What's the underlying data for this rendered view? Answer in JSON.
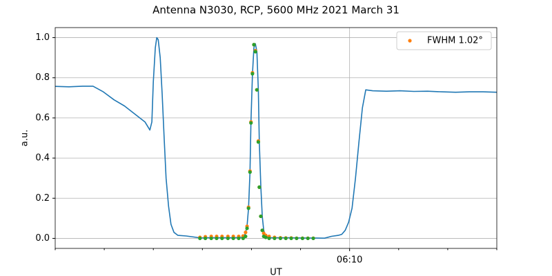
{
  "chart_data": {
    "type": "line",
    "title": "Antenna N3030, RCP, 5600 MHz 2021 March 31",
    "x_label": "UT",
    "y_label": "a.u.",
    "xlim": [
      364,
      373
    ],
    "xticks": [
      {
        "value": 370,
        "label": "06:10"
      }
    ],
    "xminorticks": [
      364,
      365,
      366,
      367,
      368,
      369,
      371,
      372,
      373
    ],
    "ylim": [
      -0.05,
      1.05
    ],
    "yticks": [
      {
        "value": 0,
        "label": "0.0"
      },
      0.2,
      0.4,
      0.6,
      0.8,
      {
        "value": 1,
        "label": "1.0"
      }
    ],
    "grid": true,
    "legend": "upper right",
    "series": [
      {
        "type": "line",
        "color": "#1f77b4",
        "x": [
          364.0,
          364.28,
          364.56,
          364.77,
          364.98,
          365.2,
          365.41,
          365.62,
          365.83,
          365.93,
          365.97,
          366.0,
          366.04,
          366.07,
          366.1,
          366.14,
          366.18,
          366.22,
          366.26,
          366.31,
          366.36,
          366.42,
          366.5,
          366.67,
          366.88,
          366.95,
          367.09,
          367.38,
          367.66,
          367.8,
          367.87,
          367.91,
          367.94,
          367.97,
          367.99,
          368.02,
          368.05,
          368.08,
          368.11,
          368.14,
          368.16,
          368.19,
          368.22,
          368.25,
          368.29,
          368.36,
          368.78,
          369.06,
          369.27,
          369.49,
          369.63,
          369.77,
          369.84,
          369.91,
          369.98,
          370.05,
          370.12,
          370.19,
          370.26,
          370.33,
          370.47,
          370.75,
          371.03,
          371.31,
          371.59,
          371.88,
          372.16,
          372.44,
          372.72,
          373.0
        ],
        "values": [
          0.757,
          0.755,
          0.758,
          0.758,
          0.73,
          0.69,
          0.66,
          0.62,
          0.58,
          0.54,
          0.58,
          0.78,
          0.95,
          1.0,
          0.99,
          0.9,
          0.72,
          0.5,
          0.3,
          0.16,
          0.07,
          0.03,
          0.015,
          0.012,
          0.005,
          0.002,
          0.003,
          0.003,
          0.003,
          0.005,
          0.02,
          0.06,
          0.15,
          0.33,
          0.58,
          0.82,
          0.95,
          0.97,
          0.93,
          0.74,
          0.48,
          0.26,
          0.11,
          0.04,
          0.01,
          0.003,
          0.003,
          0.002,
          0.002,
          0.001,
          0.01,
          0.015,
          0.02,
          0.04,
          0.08,
          0.15,
          0.3,
          0.48,
          0.65,
          0.74,
          0.735,
          0.733,
          0.735,
          0.732,
          0.733,
          0.73,
          0.728,
          0.73,
          0.73,
          0.728
        ]
      },
      {
        "type": "scatter",
        "name": "FWHM 1.02°",
        "color": "#ff7f0e",
        "x": [
          366.95,
          367.06,
          367.18,
          367.29,
          367.4,
          367.52,
          367.63,
          367.74,
          367.83,
          367.88,
          367.91,
          367.94,
          367.97,
          367.99,
          368.02,
          368.05,
          368.08,
          368.11,
          368.14,
          368.16,
          368.19,
          368.22,
          368.25,
          368.29,
          368.36,
          368.47,
          368.59,
          368.7,
          368.81,
          368.92,
          369.04,
          369.15,
          369.26
        ],
        "values": [
          0.005,
          0.008,
          0.01,
          0.01,
          0.01,
          0.01,
          0.01,
          0.01,
          0.012,
          0.03,
          0.06,
          0.155,
          0.335,
          0.58,
          0.825,
          0.965,
          0.935,
          0.74,
          0.485,
          0.255,
          0.11,
          0.04,
          0.025,
          0.015,
          0.01,
          0.005,
          0.003,
          0.002,
          0.002,
          0.001,
          0.001,
          0.001,
          0.001
        ]
      },
      {
        "type": "scatter",
        "color": "#2ca02c",
        "x": [
          366.95,
          367.06,
          367.18,
          367.29,
          367.4,
          367.52,
          367.63,
          367.74,
          367.83,
          367.88,
          367.91,
          367.94,
          367.97,
          367.99,
          368.02,
          368.05,
          368.08,
          368.11,
          368.14,
          368.16,
          368.19,
          368.22,
          368.25,
          368.29,
          368.36,
          368.47,
          368.59,
          368.7,
          368.81,
          368.92,
          369.04,
          369.15,
          369.26
        ],
        "values": [
          0,
          0,
          0,
          0,
          0,
          0,
          0,
          0,
          0,
          0.01,
          0.05,
          0.15,
          0.33,
          0.575,
          0.82,
          0.965,
          0.93,
          0.74,
          0.48,
          0.255,
          0.11,
          0.04,
          0.01,
          0.005,
          0,
          0,
          0,
          0,
          0,
          0,
          0,
          0,
          0
        ]
      }
    ]
  }
}
